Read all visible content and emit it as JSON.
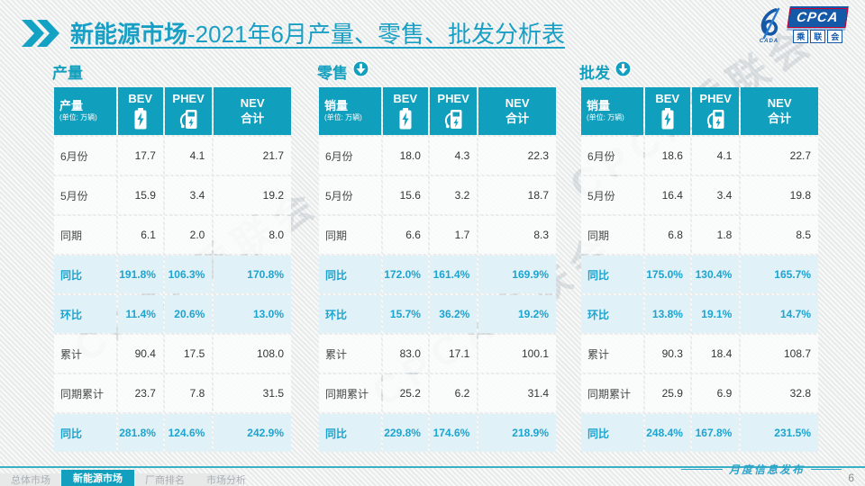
{
  "slide": {
    "title_bold": "新能源市场",
    "title_rest": "-2021年6月产量、零售、批发分析表",
    "watermark": "CPCA乘联会",
    "footer_label": "月度信息发布",
    "page_number": "6",
    "logo": {
      "swoosh_text": "CADA",
      "cpca": "CPCA",
      "sub_chars": [
        "乘",
        "联",
        "会"
      ]
    }
  },
  "colors": {
    "accent_teal": "#119fbe",
    "pct_text": "#1da4cf",
    "pct_row_bg": "#e0f1f8",
    "title_teal": "#1a9fc4",
    "logo_blue": "#1458a8"
  },
  "icons": {
    "chevron": "double-chevron-icon",
    "bev": "battery-icon",
    "phev": "charger-icon",
    "section_arrow": "circle-down-arrow-icon"
  },
  "tables": [
    {
      "section_title": "产量",
      "arrow": false,
      "header": {
        "col1_title": "产量",
        "col1_sub": "(单位: 万辆)",
        "bev": "BEV",
        "phev": "PHEV",
        "nev": "NEV",
        "nev_sub": "合计"
      },
      "rows": [
        {
          "label": "6月份",
          "bev": "17.7",
          "phev": "4.1",
          "nev": "21.7",
          "pct": false
        },
        {
          "label": "5月份",
          "bev": "15.9",
          "phev": "3.4",
          "nev": "19.2",
          "pct": false
        },
        {
          "label": "同期",
          "bev": "6.1",
          "phev": "2.0",
          "nev": "8.0",
          "pct": false
        },
        {
          "label": "同比",
          "bev": "191.8%",
          "phev": "106.3%",
          "nev": "170.8%",
          "pct": true
        },
        {
          "label": "环比",
          "bev": "11.4%",
          "phev": "20.6%",
          "nev": "13.0%",
          "pct": true
        },
        {
          "label": "累计",
          "bev": "90.4",
          "phev": "17.5",
          "nev": "108.0",
          "pct": false
        },
        {
          "label": "同期累计",
          "bev": "23.7",
          "phev": "7.8",
          "nev": "31.5",
          "pct": false
        },
        {
          "label": "同比",
          "bev": "281.8%",
          "phev": "124.6%",
          "nev": "242.9%",
          "pct": true
        }
      ]
    },
    {
      "section_title": "零售",
      "arrow": true,
      "header": {
        "col1_title": "销量",
        "col1_sub": "(单位: 万辆)",
        "bev": "BEV",
        "phev": "PHEV",
        "nev": "NEV",
        "nev_sub": "合计"
      },
      "rows": [
        {
          "label": "6月份",
          "bev": "18.0",
          "phev": "4.3",
          "nev": "22.3",
          "pct": false
        },
        {
          "label": "5月份",
          "bev": "15.6",
          "phev": "3.2",
          "nev": "18.7",
          "pct": false
        },
        {
          "label": "同期",
          "bev": "6.6",
          "phev": "1.7",
          "nev": "8.3",
          "pct": false
        },
        {
          "label": "同比",
          "bev": "172.0%",
          "phev": "161.4%",
          "nev": "169.9%",
          "pct": true
        },
        {
          "label": "环比",
          "bev": "15.7%",
          "phev": "36.2%",
          "nev": "19.2%",
          "pct": true
        },
        {
          "label": "累计",
          "bev": "83.0",
          "phev": "17.1",
          "nev": "100.1",
          "pct": false
        },
        {
          "label": "同期累计",
          "bev": "25.2",
          "phev": "6.2",
          "nev": "31.4",
          "pct": false
        },
        {
          "label": "同比",
          "bev": "229.8%",
          "phev": "174.6%",
          "nev": "218.9%",
          "pct": true
        }
      ]
    },
    {
      "section_title": "批发",
      "arrow": true,
      "header": {
        "col1_title": "销量",
        "col1_sub": "(单位: 万辆)",
        "bev": "BEV",
        "phev": "PHEV",
        "nev": "NEV",
        "nev_sub": "合计"
      },
      "rows": [
        {
          "label": "6月份",
          "bev": "18.6",
          "phev": "4.1",
          "nev": "22.7",
          "pct": false
        },
        {
          "label": "5月份",
          "bev": "16.4",
          "phev": "3.4",
          "nev": "19.8",
          "pct": false
        },
        {
          "label": "同期",
          "bev": "6.8",
          "phev": "1.8",
          "nev": "8.5",
          "pct": false
        },
        {
          "label": "同比",
          "bev": "175.0%",
          "phev": "130.4%",
          "nev": "165.7%",
          "pct": true
        },
        {
          "label": "环比",
          "bev": "13.8%",
          "phev": "19.1%",
          "nev": "14.7%",
          "pct": true
        },
        {
          "label": "累计",
          "bev": "90.3",
          "phev": "18.4",
          "nev": "108.7",
          "pct": false
        },
        {
          "label": "同期累计",
          "bev": "25.9",
          "phev": "6.9",
          "nev": "32.8",
          "pct": false
        },
        {
          "label": "同比",
          "bev": "248.4%",
          "phev": "167.8%",
          "nev": "231.5%",
          "pct": true
        }
      ]
    }
  ],
  "footer_tabs": [
    {
      "label": "总体市场",
      "active": false
    },
    {
      "label": "新能源市场",
      "active": true
    },
    {
      "label": "厂商排名",
      "active": false
    },
    {
      "label": "市场分析",
      "active": false
    }
  ]
}
